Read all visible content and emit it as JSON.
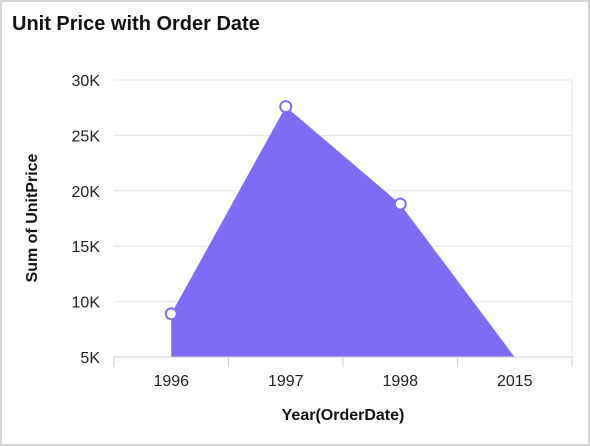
{
  "widget": {
    "title": "Unit Price with Order Date"
  },
  "chart_data": {
    "type": "area",
    "title": "Unit Price with Order Date",
    "xlabel": "Year(OrderDate)",
    "ylabel": "Sum of UnitPrice",
    "categories": [
      "1996",
      "1997",
      "1998",
      "2015"
    ],
    "series": [
      {
        "name": "Sum of UnitPrice",
        "values": [
          8900,
          27600,
          18800,
          4980
        ],
        "markers_shown": [
          true,
          true,
          true,
          false
        ]
      }
    ],
    "ylim": [
      5000,
      30000
    ],
    "yticks": [
      5000,
      10000,
      15000,
      20000,
      25000,
      30000
    ],
    "ytick_labels": [
      "5K",
      "10K",
      "15K",
      "20K",
      "25K",
      "30K"
    ],
    "grid": true,
    "colors": {
      "area": "#7f6cf5",
      "marker_fill": "#ffffff",
      "marker_stroke": "#7f6cf5",
      "grid": "#e4e4e4",
      "axis": "#cfcfcf"
    }
  }
}
